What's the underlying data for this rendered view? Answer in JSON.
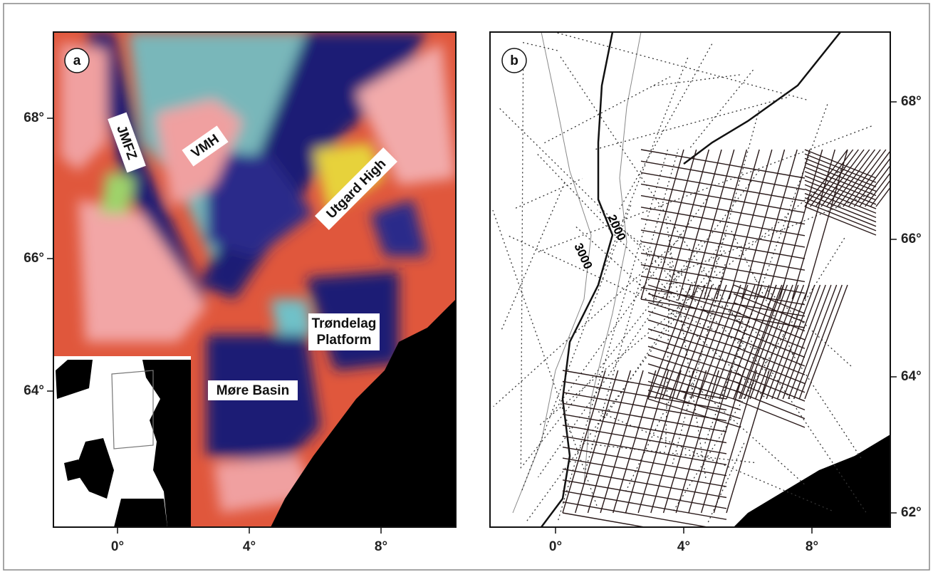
{
  "panels": [
    {
      "label": "a",
      "annotations": [
        "JMFZ",
        "VMH",
        "Utgard High",
        "Trøndelag",
        "Platform",
        "Møre Basin"
      ],
      "left_ticks": [
        "68°",
        "66°",
        "64°"
      ],
      "bottom_ticks": [
        "0°",
        "4°",
        "8°"
      ]
    },
    {
      "label": "b",
      "contour_labels": [
        "2000",
        "3000"
      ],
      "right_ticks": [
        "68°",
        "66°",
        "64°",
        "62°"
      ],
      "bottom_ticks": [
        "0°",
        "4°",
        "8°"
      ]
    }
  ]
}
